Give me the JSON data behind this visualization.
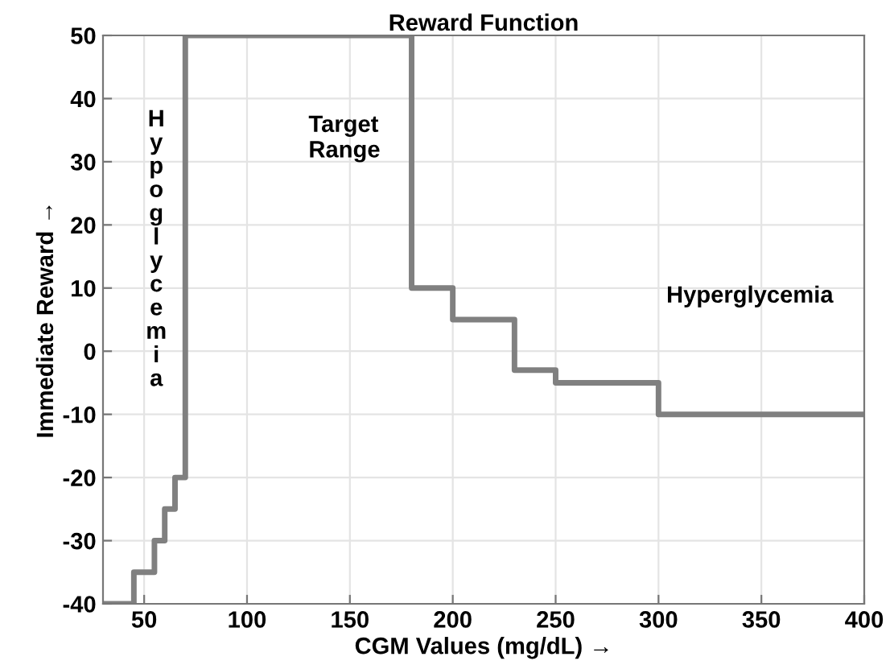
{
  "chart_data": {
    "type": "step",
    "title": "Reward Function",
    "xlabel": "CGM Values (mg/dL) →",
    "ylabel": "Immediate Reward →",
    "x": [
      30,
      45,
      55,
      60,
      65,
      70,
      180,
      200,
      230,
      250,
      300,
      400
    ],
    "series": [
      {
        "color": "#808080",
        "values": [
          -40,
          -35,
          -30,
          -25,
          -20,
          50,
          10,
          5,
          -3,
          -5,
          -10,
          -10
        ]
      }
    ],
    "xlim": [
      30,
      400
    ],
    "xticks": [
      50,
      100,
      150,
      200,
      250,
      300,
      350,
      400
    ],
    "ylim": [
      -40,
      50
    ],
    "yticks": [
      -40,
      -30,
      -20,
      -10,
      0,
      10,
      20,
      30,
      40,
      50
    ],
    "grid": true,
    "line_style": "solid",
    "annotations": [
      "Hypoglycemia",
      "Target Range",
      "Hyperglycemia"
    ]
  }
}
